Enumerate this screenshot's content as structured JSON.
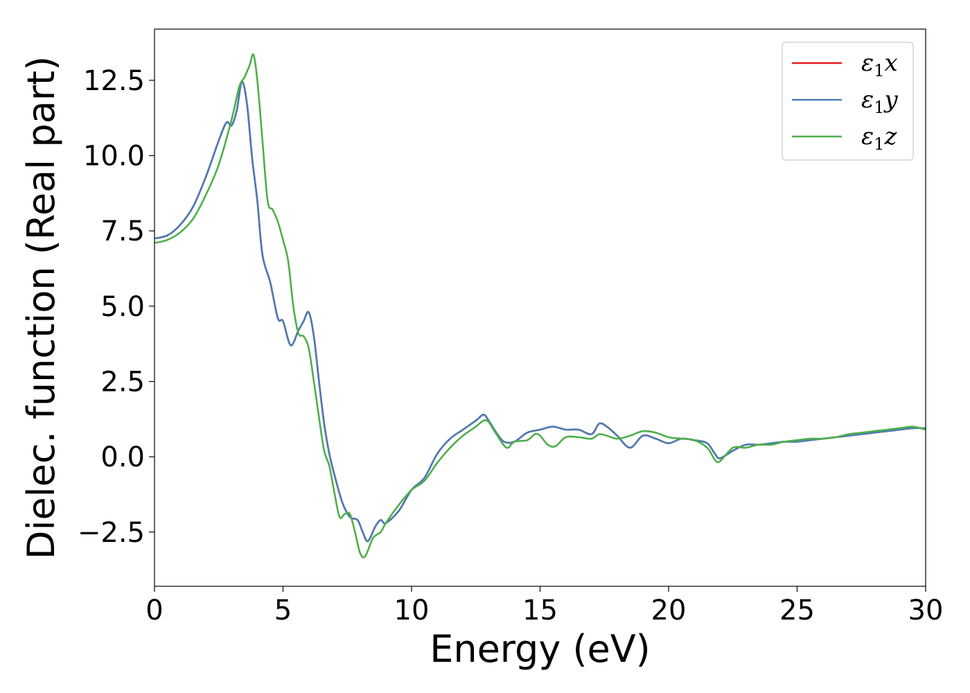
{
  "chart_data": {
    "type": "line",
    "xlabel": "Energy (eV)",
    "ylabel": "Dielec. function (Real part)",
    "xlim": [
      0,
      30
    ],
    "ylim": [
      -4.3,
      14.2
    ],
    "xticks": [
      0,
      5,
      10,
      15,
      20,
      25,
      30
    ],
    "xtick_labels": [
      "0",
      "5",
      "10",
      "15",
      "20",
      "25",
      "30"
    ],
    "yticks": [
      -2.5,
      0.0,
      2.5,
      5.0,
      7.5,
      10.0,
      12.5
    ],
    "ytick_labels": [
      "−2.5",
      "0.0",
      "2.5",
      "5.0",
      "7.5",
      "10.0",
      "12.5"
    ],
    "grid": false,
    "legend_position": "top-right",
    "series": [
      {
        "name": "x",
        "legend_symbol": "ε",
        "legend_sub": "1",
        "color": "#e41a1c",
        "x": [
          0,
          0.5,
          1,
          1.5,
          2,
          2.5,
          2.8,
          3.0,
          3.2,
          3.4,
          3.6,
          3.8,
          4.0,
          4.2,
          4.5,
          4.8,
          5.0,
          5.3,
          5.6,
          5.8,
          6.0,
          6.2,
          6.4,
          6.6,
          6.8,
          7.0,
          7.3,
          7.6,
          7.9,
          8.1,
          8.3,
          8.6,
          8.8,
          9.0,
          9.5,
          10,
          10.5,
          11,
          11.5,
          12,
          12.5,
          12.8,
          13,
          13.3,
          13.6,
          14,
          14.5,
          15,
          15.5,
          16,
          16.5,
          17,
          17.3,
          17.6,
          18,
          18.5,
          19,
          19.5,
          20,
          20.5,
          21,
          21.5,
          21.8,
          22,
          22.5,
          23,
          23.5,
          24,
          24.5,
          25,
          25.5,
          26,
          26.5,
          27,
          27.5,
          28,
          28.5,
          29,
          29.5,
          30
        ],
        "y": [
          7.25,
          7.35,
          7.7,
          8.3,
          9.3,
          10.5,
          11.1,
          11.0,
          11.5,
          12.45,
          11.7,
          9.9,
          8.5,
          6.7,
          5.8,
          4.6,
          4.5,
          3.7,
          4.2,
          4.5,
          4.8,
          4.0,
          2.5,
          1.1,
          0.1,
          -0.6,
          -1.5,
          -2.0,
          -2.1,
          -2.5,
          -2.8,
          -2.3,
          -2.1,
          -2.2,
          -1.8,
          -1.1,
          -0.7,
          0.1,
          0.6,
          0.9,
          1.2,
          1.4,
          1.2,
          0.8,
          0.5,
          0.5,
          0.8,
          0.9,
          1.0,
          0.9,
          0.9,
          0.75,
          1.1,
          1.0,
          0.7,
          0.3,
          0.7,
          0.6,
          0.45,
          0.6,
          0.55,
          0.45,
          0.1,
          -0.05,
          0.2,
          0.4,
          0.4,
          0.45,
          0.5,
          0.5,
          0.55,
          0.6,
          0.65,
          0.7,
          0.75,
          0.8,
          0.85,
          0.9,
          0.95,
          0.95
        ]
      },
      {
        "name": "y",
        "legend_symbol": "ε",
        "legend_sub": "1",
        "color": "#4a7db5",
        "x": [
          0,
          0.5,
          1,
          1.5,
          2,
          2.5,
          2.8,
          3.0,
          3.2,
          3.4,
          3.6,
          3.8,
          4.0,
          4.2,
          4.5,
          4.8,
          5.0,
          5.3,
          5.6,
          5.8,
          6.0,
          6.2,
          6.4,
          6.6,
          6.8,
          7.0,
          7.3,
          7.6,
          7.9,
          8.1,
          8.3,
          8.6,
          8.8,
          9.0,
          9.5,
          10,
          10.5,
          11,
          11.5,
          12,
          12.5,
          12.8,
          13,
          13.3,
          13.6,
          14,
          14.5,
          15,
          15.5,
          16,
          16.5,
          17,
          17.3,
          17.6,
          18,
          18.5,
          19,
          19.5,
          20,
          20.5,
          21,
          21.5,
          21.8,
          22,
          22.5,
          23,
          23.5,
          24,
          24.5,
          25,
          25.5,
          26,
          26.5,
          27,
          27.5,
          28,
          28.5,
          29,
          29.5,
          30
        ],
        "y": [
          7.25,
          7.35,
          7.7,
          8.3,
          9.3,
          10.5,
          11.1,
          11.0,
          11.5,
          12.45,
          11.7,
          9.9,
          8.5,
          6.7,
          5.8,
          4.6,
          4.5,
          3.7,
          4.2,
          4.5,
          4.8,
          4.0,
          2.5,
          1.1,
          0.1,
          -0.6,
          -1.5,
          -2.0,
          -2.1,
          -2.5,
          -2.8,
          -2.3,
          -2.1,
          -2.2,
          -1.8,
          -1.1,
          -0.7,
          0.1,
          0.6,
          0.9,
          1.2,
          1.4,
          1.2,
          0.8,
          0.5,
          0.5,
          0.8,
          0.9,
          1.0,
          0.9,
          0.9,
          0.75,
          1.1,
          1.0,
          0.7,
          0.3,
          0.7,
          0.6,
          0.45,
          0.6,
          0.55,
          0.45,
          0.1,
          -0.05,
          0.2,
          0.4,
          0.4,
          0.45,
          0.5,
          0.5,
          0.55,
          0.6,
          0.65,
          0.7,
          0.75,
          0.8,
          0.85,
          0.9,
          0.95,
          0.95
        ]
      },
      {
        "name": "z",
        "legend_symbol": "ε",
        "legend_sub": "1",
        "color": "#4daf4a",
        "x": [
          0,
          0.5,
          1,
          1.5,
          2,
          2.5,
          3.0,
          3.3,
          3.5,
          3.7,
          3.85,
          4.0,
          4.2,
          4.4,
          4.6,
          4.8,
          5.0,
          5.2,
          5.4,
          5.6,
          5.8,
          6.0,
          6.2,
          6.4,
          6.6,
          6.8,
          7.0,
          7.2,
          7.4,
          7.6,
          7.8,
          8.0,
          8.2,
          8.5,
          8.8,
          9.0,
          9.5,
          10,
          10.5,
          11,
          11.5,
          12,
          12.5,
          12.8,
          13,
          13.3,
          13.7,
          14,
          14.5,
          14.8,
          15,
          15.3,
          15.6,
          16,
          16.5,
          17,
          17.3,
          17.6,
          18,
          18.5,
          19,
          19.5,
          20,
          20.5,
          21,
          21.5,
          21.8,
          22,
          22.5,
          23,
          23.5,
          24,
          24.5,
          25,
          25.5,
          26,
          26.5,
          27,
          27.5,
          28,
          28.5,
          29,
          29.5,
          30
        ],
        "y": [
          7.1,
          7.2,
          7.45,
          7.9,
          8.7,
          9.7,
          11.2,
          12.3,
          12.6,
          13.0,
          13.35,
          12.5,
          10.5,
          8.5,
          8.2,
          7.8,
          7.2,
          6.5,
          5.0,
          4.1,
          4.0,
          3.6,
          2.5,
          1.3,
          0.2,
          -0.3,
          -1.2,
          -2.0,
          -1.9,
          -1.9,
          -2.5,
          -3.2,
          -3.3,
          -2.7,
          -2.5,
          -2.2,
          -1.6,
          -1.1,
          -0.8,
          -0.2,
          0.3,
          0.7,
          1.0,
          1.2,
          1.15,
          0.75,
          0.3,
          0.5,
          0.55,
          0.75,
          0.7,
          0.4,
          0.35,
          0.65,
          0.65,
          0.6,
          0.75,
          0.7,
          0.6,
          0.7,
          0.85,
          0.8,
          0.65,
          0.6,
          0.55,
          0.3,
          -0.1,
          -0.15,
          0.3,
          0.3,
          0.4,
          0.4,
          0.5,
          0.55,
          0.6,
          0.6,
          0.65,
          0.75,
          0.8,
          0.85,
          0.9,
          0.95,
          1.0,
          0.9
        ]
      }
    ]
  }
}
